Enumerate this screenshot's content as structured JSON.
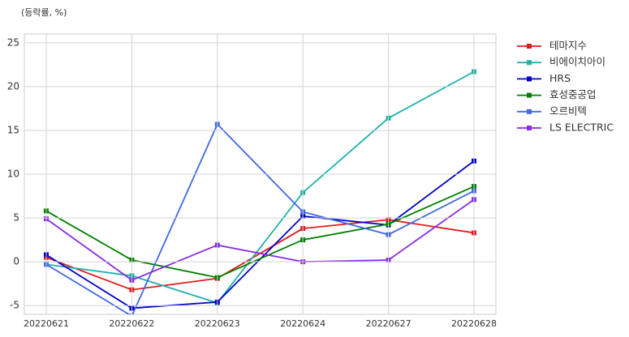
{
  "chart_data": {
    "type": "line",
    "ylabel": "(등락률, %)",
    "categories": [
      "20220621",
      "20220622",
      "20220623",
      "20220624",
      "20220627",
      "20220628"
    ],
    "series": [
      {
        "name": "테마지수",
        "color": "#e31a1c",
        "values": [
          0.5,
          -3.2,
          -1.9,
          3.8,
          4.8,
          3.3
        ]
      },
      {
        "name": "비에이치아이",
        "color": "#20b2aa",
        "values": [
          -0.3,
          -1.6,
          -4.7,
          7.9,
          16.4,
          21.7
        ]
      },
      {
        "name": "HRS",
        "color": "#0000cd",
        "values": [
          0.8,
          -5.3,
          -4.6,
          5.2,
          4.2,
          11.5
        ]
      },
      {
        "name": "효성중공업",
        "color": "#008000",
        "values": [
          5.8,
          0.2,
          -1.8,
          2.5,
          4.3,
          8.6
        ]
      },
      {
        "name": "오르비텍",
        "color": "#4169e1",
        "values": [
          -0.3,
          -6.2,
          15.7,
          5.7,
          3.1,
          8.1
        ]
      },
      {
        "name": "LS ELECTRIC",
        "color": "#8a2be2",
        "values": [
          4.9,
          -2.1,
          1.9,
          0,
          0.2,
          7.1
        ]
      }
    ],
    "ylim": [
      -6,
      26
    ],
    "yticks": [
      -5,
      0,
      5,
      10,
      15,
      20,
      25
    ],
    "grid": true,
    "legend": "outside-right"
  }
}
